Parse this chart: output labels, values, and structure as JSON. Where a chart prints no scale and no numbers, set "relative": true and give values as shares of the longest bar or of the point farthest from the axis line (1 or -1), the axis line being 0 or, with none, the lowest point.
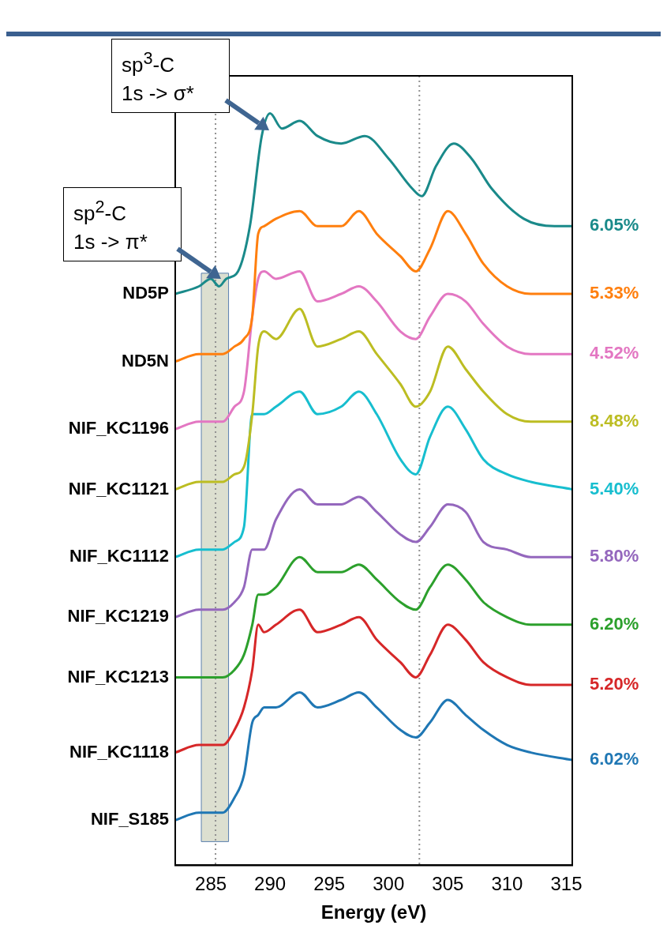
{
  "chart_data": {
    "type": "line",
    "xlabel": "Energy (eV)",
    "relative": true,
    "xlim": [
      282,
      315.5
    ],
    "xticks": [
      285,
      290,
      295,
      300,
      305,
      310,
      315
    ],
    "grid": false,
    "legend": false,
    "marker": "none",
    "line_style": "solid",
    "tick_labels": "x",
    "ref_lines": [
      {
        "axis": "x",
        "value": 285.4,
        "color": "#909090",
        "line_style": "dotted"
      },
      {
        "axis": "x",
        "value": 302.6,
        "color": "#909090",
        "line_style": "dotted"
      }
    ],
    "bands": [
      {
        "axis": "x",
        "from": 284.2,
        "to": 286.5,
        "color": "#dcdfd0"
      }
    ],
    "series": [
      {
        "name": "ND5P",
        "color": "#1a8a8a",
        "x": [
          282,
          284,
          285,
          285.7,
          286.3,
          287.3,
          288.3,
          289.3,
          290,
          291,
          292.5,
          294,
          296,
          298,
          300,
          302,
          302.8,
          304,
          305.5,
          307,
          308.7,
          311.4,
          314,
          315.5
        ],
        "values": [
          0.76,
          0.77,
          0.78,
          0.77,
          0.78,
          0.79,
          0.85,
          0.97,
          1,
          0.98,
          0.99,
          0.97,
          0.96,
          0.97,
          0.94,
          0.9,
          0.89,
          0.93,
          0.96,
          0.94,
          0.9,
          0.86,
          0.85,
          0.85
        ]
      },
      {
        "name": "ND5N",
        "color": "#ff7f0e",
        "x": [
          282,
          284,
          285,
          286,
          287,
          287.8,
          288.5,
          289,
          289.5,
          290.5,
          292.5,
          294,
          296,
          297.5,
          299,
          301,
          302.3,
          303.5,
          305,
          306.5,
          308,
          310,
          312,
          315.5
        ],
        "values": [
          0.67,
          0.68,
          0.68,
          0.68,
          0.69,
          0.7,
          0.73,
          0.84,
          0.85,
          0.86,
          0.87,
          0.85,
          0.85,
          0.87,
          0.84,
          0.81,
          0.79,
          0.82,
          0.87,
          0.84,
          0.8,
          0.77,
          0.76,
          0.76
        ]
      },
      {
        "name": "NIF_KC1196",
        "color": "#e377c2",
        "x": [
          282,
          284,
          285,
          286,
          287,
          287.8,
          288.5,
          289,
          289.5,
          290.5,
          292.5,
          294,
          296,
          297.5,
          299,
          301,
          302.3,
          303.5,
          305,
          306.5,
          308,
          310,
          312,
          315.5
        ],
        "values": [
          0.58,
          0.59,
          0.59,
          0.59,
          0.61,
          0.63,
          0.73,
          0.78,
          0.79,
          0.78,
          0.79,
          0.75,
          0.76,
          0.77,
          0.75,
          0.71,
          0.7,
          0.73,
          0.76,
          0.75,
          0.72,
          0.69,
          0.68,
          0.68
        ]
      },
      {
        "name": "NIF_KC1121",
        "color": "#bcbd22",
        "x": [
          282,
          284,
          285,
          286,
          287,
          287.8,
          288.5,
          289,
          289.5,
          290.5,
          292.5,
          294,
          296,
          297.5,
          299,
          301,
          302.3,
          303.5,
          305,
          306.5,
          308,
          310,
          312,
          315.5
        ],
        "values": [
          0.5,
          0.51,
          0.51,
          0.51,
          0.52,
          0.53,
          0.6,
          0.69,
          0.71,
          0.7,
          0.74,
          0.69,
          0.7,
          0.71,
          0.68,
          0.64,
          0.61,
          0.63,
          0.69,
          0.66,
          0.63,
          0.6,
          0.59,
          0.59
        ]
      },
      {
        "name": "NIF_KC1112",
        "color": "#17becf",
        "x": [
          282,
          284,
          285,
          286,
          287,
          287.8,
          288.5,
          289,
          289.5,
          290.5,
          292.5,
          294,
          296,
          297.5,
          299,
          301,
          302.3,
          303.5,
          305,
          306.5,
          308,
          310,
          312,
          315.5
        ],
        "values": [
          0.41,
          0.42,
          0.42,
          0.42,
          0.43,
          0.45,
          0.6,
          0.6,
          0.6,
          0.61,
          0.63,
          0.6,
          0.61,
          0.63,
          0.6,
          0.54,
          0.52,
          0.57,
          0.61,
          0.58,
          0.54,
          0.52,
          0.51,
          0.5
        ]
      },
      {
        "name": "NIF_KC1219",
        "color": "#9467bd",
        "x": [
          282,
          284,
          285,
          286,
          287,
          287.8,
          288.5,
          289,
          289.5,
          290.5,
          292.5,
          294,
          296,
          297.5,
          299,
          301,
          302.3,
          303.5,
          305,
          306.5,
          308,
          310,
          312,
          315.5
        ],
        "values": [
          0.33,
          0.34,
          0.34,
          0.34,
          0.35,
          0.37,
          0.42,
          0.42,
          0.42,
          0.46,
          0.5,
          0.48,
          0.48,
          0.49,
          0.47,
          0.44,
          0.43,
          0.45,
          0.48,
          0.47,
          0.43,
          0.42,
          0.41,
          0.41
        ]
      },
      {
        "name": "NIF_KC1213",
        "color": "#2ca02c",
        "x": [
          282,
          284,
          285,
          286,
          287,
          287.8,
          288.5,
          289,
          289.5,
          290.5,
          292.5,
          294,
          296,
          297.5,
          299,
          301,
          302.3,
          303.5,
          305,
          306.5,
          308,
          310,
          312,
          315.5
        ],
        "values": [
          0.25,
          0.25,
          0.25,
          0.25,
          0.26,
          0.28,
          0.32,
          0.36,
          0.36,
          0.37,
          0.41,
          0.39,
          0.39,
          0.4,
          0.38,
          0.35,
          0.34,
          0.37,
          0.4,
          0.38,
          0.35,
          0.33,
          0.32,
          0.32
        ]
      },
      {
        "name": "NIF_KC1118",
        "color": "#d62728",
        "x": [
          282,
          284,
          285,
          286,
          287,
          287.8,
          288.5,
          289,
          289.5,
          290.5,
          292.5,
          294,
          296,
          297.5,
          299,
          301,
          302.3,
          303.5,
          305,
          306.5,
          308,
          310,
          312,
          315.5
        ],
        "values": [
          0.15,
          0.16,
          0.16,
          0.16,
          0.18,
          0.21,
          0.26,
          0.32,
          0.31,
          0.32,
          0.34,
          0.31,
          0.32,
          0.33,
          0.3,
          0.27,
          0.25,
          0.28,
          0.32,
          0.3,
          0.27,
          0.25,
          0.24,
          0.24
        ]
      },
      {
        "name": "NIF_S185",
        "color": "#1f77b4",
        "x": [
          282,
          284,
          285,
          286,
          287,
          287.8,
          288.5,
          289,
          289.5,
          290.5,
          292.5,
          294,
          296,
          297.5,
          299,
          301,
          302.3,
          303.5,
          305,
          306.5,
          308,
          310,
          312,
          315.5
        ],
        "values": [
          0.06,
          0.07,
          0.07,
          0.07,
          0.09,
          0.12,
          0.19,
          0.2,
          0.21,
          0.21,
          0.23,
          0.21,
          0.22,
          0.23,
          0.21,
          0.18,
          0.17,
          0.19,
          0.22,
          0.2,
          0.18,
          0.16,
          0.15,
          0.14
        ]
      }
    ],
    "annotations": [
      "sp$^{3}$-C\n1s -> σ*",
      "sp$^{2}$-C\n1s -> π*",
      "6.05%",
      "5.33%",
      "4.52%",
      "8.48%",
      "5.40%",
      "5.80%",
      "6.20%",
      "5.20%",
      "6.02%"
    ]
  }
}
